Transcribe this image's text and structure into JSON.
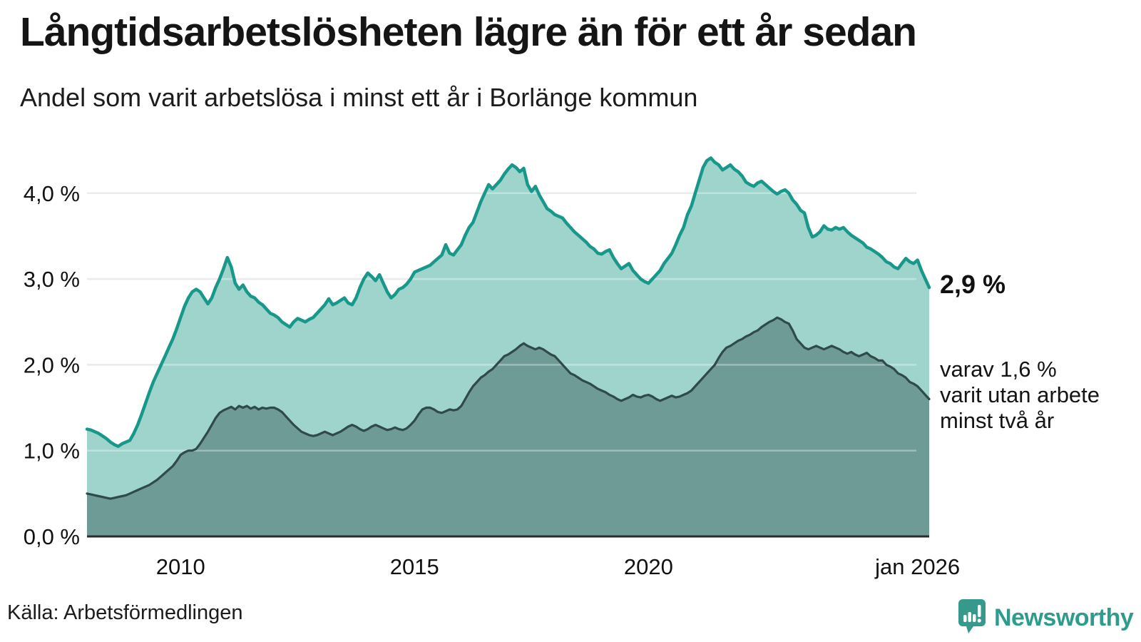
{
  "title": "Långtidsarbetslösheten lägre än för ett år sedan",
  "subtitle": "Andel som varit arbetslösa i minst ett år i Borlänge kommun",
  "source": "Källa: Arbetsförmedlingen",
  "branding": {
    "name": "Newsworthy",
    "icon": "newsworthy-speech-bubble-chart-icon",
    "color": "#2e9c8d",
    "icon_color": "#37998c"
  },
  "annotations": {
    "latest_total": "2,9 %",
    "secondary_lines": {
      "0": "varav 1,6 %",
      "1": "varit utan arbete",
      "2": "minst två år"
    }
  },
  "colors": {
    "background": "#ffffff",
    "grid": "#e2e2e7",
    "axis_line": "#2b2b2b",
    "text": "#111111",
    "series1_line": "#18988a",
    "series1_fill": "#9fd4cc",
    "series2_line": "#2f4a48",
    "series2_fill": "#6f9b97"
  },
  "chart_data": {
    "type": "area",
    "title": "Långtidsarbetslösheten lägre än för ett år sedan",
    "subtitle": "Andel som varit arbetslösa i minst ett år i Borlänge kommun",
    "xlabel": "",
    "ylabel": "",
    "x_start_year": 2008.0,
    "x_end_year": 2026.0,
    "points_per_year": 12,
    "ylim": [
      0,
      4.6
    ],
    "grid": true,
    "legend_position": "none",
    "y_ticks": [
      {
        "label": "0,0 %",
        "value": 0
      },
      {
        "label": "1,0 %",
        "value": 1
      },
      {
        "label": "2,0 %",
        "value": 2
      },
      {
        "label": "3,0 %",
        "value": 3
      },
      {
        "label": "4,0 %",
        "value": 4
      }
    ],
    "x_ticks": [
      {
        "label": "2010",
        "year": 2010
      },
      {
        "label": "2015",
        "year": 2015
      },
      {
        "label": "2020",
        "year": 2020
      },
      {
        "label": "jan 2026",
        "year": 2025.75
      }
    ],
    "series": [
      {
        "name": "Arbetslösa minst ett år",
        "line_color": "#18988a",
        "fill_color": "#9fd4cc",
        "latest_label": "2,9 %",
        "values": [
          1.25,
          1.24,
          1.22,
          1.2,
          1.17,
          1.14,
          1.1,
          1.07,
          1.05,
          1.08,
          1.1,
          1.12,
          1.2,
          1.3,
          1.42,
          1.55,
          1.68,
          1.8,
          1.9,
          2.0,
          2.1,
          2.2,
          2.3,
          2.42,
          2.55,
          2.68,
          2.78,
          2.85,
          2.88,
          2.85,
          2.78,
          2.71,
          2.78,
          2.9,
          3.0,
          3.12,
          3.25,
          3.14,
          2.95,
          2.88,
          2.93,
          2.85,
          2.8,
          2.78,
          2.73,
          2.7,
          2.65,
          2.6,
          2.58,
          2.55,
          2.5,
          2.47,
          2.44,
          2.5,
          2.54,
          2.52,
          2.5,
          2.53,
          2.55,
          2.6,
          2.65,
          2.7,
          2.77,
          2.7,
          2.72,
          2.75,
          2.78,
          2.72,
          2.7,
          2.78,
          2.9,
          3.0,
          3.07,
          3.03,
          2.98,
          3.05,
          2.95,
          2.85,
          2.78,
          2.82,
          2.88,
          2.9,
          2.94,
          3.0,
          3.08,
          3.1,
          3.12,
          3.14,
          3.16,
          3.2,
          3.24,
          3.28,
          3.4,
          3.3,
          3.28,
          3.34,
          3.4,
          3.51,
          3.6,
          3.66,
          3.78,
          3.9,
          4.0,
          4.1,
          4.05,
          4.1,
          4.15,
          4.22,
          4.28,
          4.33,
          4.3,
          4.25,
          4.29,
          4.1,
          4.02,
          4.08,
          3.98,
          3.9,
          3.82,
          3.79,
          3.75,
          3.73,
          3.71,
          3.65,
          3.6,
          3.55,
          3.51,
          3.47,
          3.43,
          3.38,
          3.35,
          3.3,
          3.29,
          3.32,
          3.34,
          3.25,
          3.18,
          3.12,
          3.15,
          3.18,
          3.1,
          3.05,
          3.0,
          2.97,
          2.95,
          3.0,
          3.05,
          3.1,
          3.18,
          3.24,
          3.3,
          3.4,
          3.51,
          3.6,
          3.75,
          3.85,
          4.0,
          4.15,
          4.3,
          4.38,
          4.41,
          4.36,
          4.33,
          4.27,
          4.3,
          4.33,
          4.28,
          4.25,
          4.2,
          4.13,
          4.1,
          4.08,
          4.12,
          4.14,
          4.1,
          4.06,
          4.02,
          3.99,
          4.02,
          4.04,
          4.0,
          3.92,
          3.87,
          3.8,
          3.77,
          3.6,
          3.49,
          3.51,
          3.55,
          3.62,
          3.58,
          3.57,
          3.6,
          3.58,
          3.6,
          3.55,
          3.51,
          3.48,
          3.45,
          3.42,
          3.37,
          3.35,
          3.32,
          3.29,
          3.25,
          3.2,
          3.18,
          3.14,
          3.12,
          3.18,
          3.24,
          3.2,
          3.18,
          3.22,
          3.1,
          3.0,
          2.9
        ]
      },
      {
        "name": "varav utan arbete minst två år",
        "line_color": "#2f4a48",
        "fill_color": "#6f9b97",
        "latest_label": "1,6 %",
        "values": [
          0.5,
          0.49,
          0.48,
          0.47,
          0.46,
          0.45,
          0.44,
          0.45,
          0.46,
          0.47,
          0.48,
          0.5,
          0.52,
          0.54,
          0.56,
          0.58,
          0.6,
          0.63,
          0.66,
          0.7,
          0.74,
          0.78,
          0.82,
          0.88,
          0.95,
          0.98,
          1.0,
          1.0,
          1.02,
          1.08,
          1.15,
          1.22,
          1.3,
          1.38,
          1.44,
          1.47,
          1.49,
          1.51,
          1.48,
          1.52,
          1.5,
          1.52,
          1.49,
          1.51,
          1.48,
          1.5,
          1.49,
          1.5,
          1.5,
          1.48,
          1.45,
          1.4,
          1.35,
          1.3,
          1.26,
          1.22,
          1.2,
          1.18,
          1.17,
          1.18,
          1.2,
          1.22,
          1.2,
          1.18,
          1.2,
          1.22,
          1.25,
          1.28,
          1.3,
          1.28,
          1.25,
          1.23,
          1.25,
          1.28,
          1.3,
          1.28,
          1.26,
          1.24,
          1.25,
          1.27,
          1.25,
          1.24,
          1.26,
          1.3,
          1.35,
          1.42,
          1.48,
          1.5,
          1.5,
          1.48,
          1.45,
          1.44,
          1.46,
          1.48,
          1.47,
          1.48,
          1.52,
          1.6,
          1.68,
          1.75,
          1.8,
          1.85,
          1.88,
          1.92,
          1.95,
          2.0,
          2.05,
          2.1,
          2.12,
          2.15,
          2.18,
          2.22,
          2.25,
          2.22,
          2.2,
          2.18,
          2.2,
          2.18,
          2.15,
          2.12,
          2.1,
          2.05,
          2.0,
          1.95,
          1.9,
          1.88,
          1.85,
          1.82,
          1.8,
          1.78,
          1.75,
          1.72,
          1.7,
          1.68,
          1.65,
          1.63,
          1.6,
          1.58,
          1.6,
          1.62,
          1.65,
          1.63,
          1.62,
          1.64,
          1.65,
          1.63,
          1.6,
          1.58,
          1.6,
          1.62,
          1.64,
          1.62,
          1.63,
          1.65,
          1.67,
          1.7,
          1.75,
          1.8,
          1.85,
          1.9,
          1.95,
          2.0,
          2.08,
          2.15,
          2.2,
          2.22,
          2.25,
          2.28,
          2.3,
          2.33,
          2.35,
          2.38,
          2.4,
          2.44,
          2.47,
          2.5,
          2.52,
          2.55,
          2.53,
          2.5,
          2.48,
          2.4,
          2.3,
          2.25,
          2.2,
          2.18,
          2.2,
          2.22,
          2.2,
          2.18,
          2.2,
          2.22,
          2.2,
          2.18,
          2.15,
          2.13,
          2.15,
          2.12,
          2.1,
          2.12,
          2.14,
          2.1,
          2.08,
          2.05,
          2.05,
          2.0,
          1.98,
          1.95,
          1.9,
          1.88,
          1.85,
          1.8,
          1.78,
          1.75,
          1.7,
          1.65,
          1.6
        ]
      }
    ]
  }
}
